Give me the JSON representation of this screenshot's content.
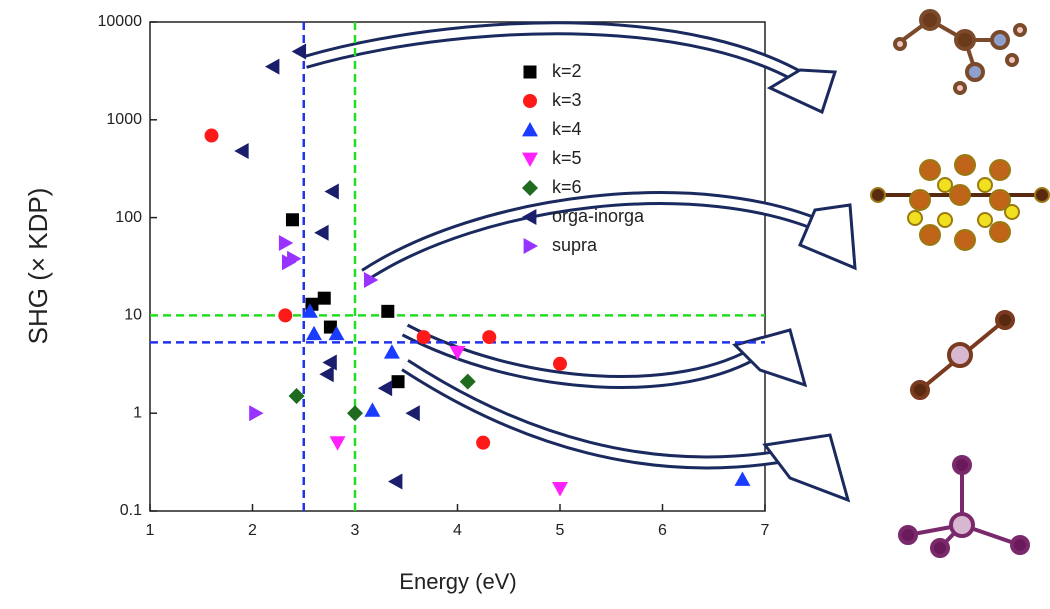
{
  "chart_data": {
    "type": "scatter",
    "x_label": "Energy (eV)",
    "y_label": "SHG (× KDP)",
    "y_scale": "log",
    "xlim": [
      1,
      7
    ],
    "xticks": [
      1,
      2,
      3,
      4,
      5,
      6,
      7
    ],
    "ylim": [
      0.1,
      10000
    ],
    "yticks": [
      0.1,
      1,
      10,
      100,
      1000,
      10000
    ],
    "legend_position": "upper right",
    "reference_lines": [
      {
        "axis": "x",
        "value": 2.5,
        "color": "#2233ee"
      },
      {
        "axis": "x",
        "value": 3,
        "color": "#22dd22"
      },
      {
        "axis": "y",
        "value": 10,
        "color": "#22dd22"
      },
      {
        "axis": "y",
        "value": 5.3,
        "color": "#2233ee"
      }
    ],
    "series": [
      {
        "name": "k=2",
        "marker": "square",
        "color": "#000000",
        "x": [
          2.39,
          2.58,
          2.7,
          2.76,
          3.32,
          3.42
        ],
        "values": [
          95,
          13,
          15,
          7.6,
          11,
          2.1
        ]
      },
      {
        "name": "k=3",
        "marker": "circle",
        "color": "#ff1a1a",
        "x": [
          1.6,
          2.32,
          3.67,
          4.31,
          5.0,
          4.25
        ],
        "values": [
          690,
          10,
          6,
          6,
          3.2,
          0.5
        ]
      },
      {
        "name": "k=4",
        "marker": "triangle-up",
        "color": "#1a3cff",
        "x": [
          2.56,
          2.6,
          2.82,
          3.36,
          3.17,
          6.78
        ],
        "values": [
          11,
          6.5,
          6.5,
          4.2,
          1.07,
          0.21
        ]
      },
      {
        "name": "k=5",
        "marker": "triangle-down",
        "color": "#ff22ff",
        "x": [
          2.83,
          4.0,
          5.0
        ],
        "values": [
          0.5,
          4.2,
          0.17
        ]
      },
      {
        "name": "k=6",
        "marker": "diamond",
        "color": "#1f6b1f",
        "x": [
          2.43,
          3.0,
          4.1
        ],
        "values": [
          1.5,
          1.0,
          2.1
        ]
      },
      {
        "name": "orga-inorga",
        "marker": "triangle-left",
        "color": "#1b1f6b",
        "x": [
          2.2,
          2.46,
          1.9,
          2.78,
          2.68,
          2.76,
          2.73,
          3.3,
          3.57,
          3.4
        ],
        "values": [
          3500,
          5000,
          480,
          185,
          70,
          3.3,
          2.5,
          1.8,
          1.0,
          0.2
        ]
      },
      {
        "name": "supra",
        "marker": "triangle-right",
        "color": "#9933ff",
        "x": [
          2.32,
          2.35,
          2.4,
          3.15,
          2.03
        ],
        "values": [
          55,
          35,
          38,
          23,
          1.0
        ]
      }
    ]
  }
}
